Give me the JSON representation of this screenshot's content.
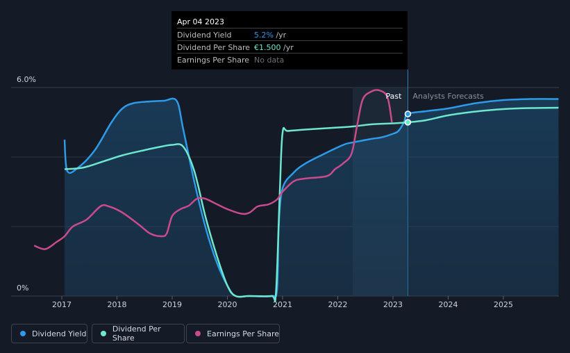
{
  "tooltip": {
    "date": "Apr 04 2023",
    "rows": [
      {
        "label": "Dividend Yield",
        "value": "5.2%",
        "suffix": " /yr",
        "color": "#2e9be8"
      },
      {
        "label": "Dividend Per Share",
        "value": "€1.500",
        "suffix": " /yr",
        "color": "#6ee7cf"
      },
      {
        "label": "Earnings Per Share",
        "value": "No data",
        "suffix": "",
        "color": "#6a6f78"
      }
    ]
  },
  "legend": [
    {
      "label": "Dividend Yield",
      "color": "#2e9be8"
    },
    {
      "label": "Dividend Per Share",
      "color": "#6ee7cf"
    },
    {
      "label": "Earnings Per Share",
      "color": "#c94b8d"
    }
  ],
  "chart_data": {
    "type": "line",
    "y_top_label": "6.0%",
    "y_bottom_label": "0%",
    "ylim": [
      0,
      6.0
    ],
    "xlim": [
      2016.5,
      2026
    ],
    "x_ticks": [
      "2017",
      "2018",
      "2019",
      "2020",
      "2021",
      "2022",
      "2023",
      "2024",
      "2025"
    ],
    "past_label": "Past",
    "forecast_label": "Analysts Forecasts",
    "past_end": 2023.27,
    "forecast_band_start": 2022.27,
    "series": [
      {
        "name": "Dividend Yield",
        "color": "#2e9be8",
        "points": [
          [
            2017.05,
            4.5
          ],
          [
            2017.1,
            3.6
          ],
          [
            2017.3,
            3.7
          ],
          [
            2017.6,
            4.2
          ],
          [
            2017.9,
            5.0
          ],
          [
            2018.1,
            5.4
          ],
          [
            2018.3,
            5.55
          ],
          [
            2018.6,
            5.6
          ],
          [
            2018.85,
            5.62
          ],
          [
            2019.08,
            5.62
          ],
          [
            2019.2,
            4.8
          ],
          [
            2019.4,
            3.3
          ],
          [
            2019.6,
            2.0
          ],
          [
            2019.8,
            1.0
          ],
          [
            2020.0,
            0.3
          ],
          [
            2020.15,
            0
          ],
          [
            2020.4,
            0
          ],
          [
            2020.8,
            0
          ],
          [
            2020.9,
            0.2
          ],
          [
            2020.93,
            2.0
          ],
          [
            2021.0,
            3.1
          ],
          [
            2021.2,
            3.55
          ],
          [
            2021.4,
            3.8
          ],
          [
            2021.7,
            4.05
          ],
          [
            2022.1,
            4.35
          ],
          [
            2022.27,
            4.42
          ],
          [
            2022.6,
            4.52
          ],
          [
            2022.8,
            4.57
          ],
          [
            2023.0,
            4.67
          ],
          [
            2023.1,
            4.75
          ],
          [
            2023.2,
            5.0
          ],
          [
            2023.27,
            5.24
          ],
          [
            2023.6,
            5.32
          ],
          [
            2024.0,
            5.4
          ],
          [
            2024.5,
            5.55
          ],
          [
            2025.0,
            5.64
          ],
          [
            2025.5,
            5.67
          ],
          [
            2026.0,
            5.67
          ]
        ],
        "marker": [
          2023.27,
          5.24
        ]
      },
      {
        "name": "Dividend Per Share",
        "color": "#6ee7cf",
        "points": [
          [
            2017.05,
            3.65
          ],
          [
            2017.4,
            3.7
          ],
          [
            2017.8,
            3.9
          ],
          [
            2018.1,
            4.05
          ],
          [
            2018.5,
            4.2
          ],
          [
            2018.8,
            4.3
          ],
          [
            2019.0,
            4.35
          ],
          [
            2019.2,
            4.3
          ],
          [
            2019.4,
            3.6
          ],
          [
            2019.6,
            2.3
          ],
          [
            2019.8,
            1.2
          ],
          [
            2020.0,
            0.3
          ],
          [
            2020.15,
            0
          ],
          [
            2020.4,
            0
          ],
          [
            2020.8,
            0
          ],
          [
            2020.88,
            0.1
          ],
          [
            2020.95,
            3.0
          ],
          [
            2021.0,
            4.7
          ],
          [
            2021.1,
            4.75
          ],
          [
            2021.5,
            4.8
          ],
          [
            2022.0,
            4.85
          ],
          [
            2022.27,
            4.88
          ],
          [
            2022.6,
            4.94
          ],
          [
            2023.0,
            4.97
          ],
          [
            2023.27,
            5.0
          ],
          [
            2023.6,
            5.06
          ],
          [
            2024.0,
            5.2
          ],
          [
            2024.5,
            5.31
          ],
          [
            2025.0,
            5.38
          ],
          [
            2025.5,
            5.41
          ],
          [
            2026.0,
            5.42
          ]
        ],
        "marker": [
          2023.27,
          5.0
        ]
      },
      {
        "name": "Earnings Per Share",
        "color": "#c94b8d",
        "points": [
          [
            2016.5,
            1.45
          ],
          [
            2016.7,
            1.35
          ],
          [
            2016.9,
            1.55
          ],
          [
            2017.05,
            1.72
          ],
          [
            2017.2,
            2.0
          ],
          [
            2017.45,
            2.2
          ],
          [
            2017.7,
            2.58
          ],
          [
            2017.85,
            2.58
          ],
          [
            2018.1,
            2.4
          ],
          [
            2018.4,
            2.05
          ],
          [
            2018.6,
            1.8
          ],
          [
            2018.8,
            1.72
          ],
          [
            2018.9,
            1.8
          ],
          [
            2019.0,
            2.3
          ],
          [
            2019.15,
            2.5
          ],
          [
            2019.3,
            2.6
          ],
          [
            2019.45,
            2.8
          ],
          [
            2019.6,
            2.8
          ],
          [
            2019.8,
            2.65
          ],
          [
            2020.0,
            2.5
          ],
          [
            2020.25,
            2.37
          ],
          [
            2020.4,
            2.4
          ],
          [
            2020.55,
            2.58
          ],
          [
            2020.75,
            2.64
          ],
          [
            2020.9,
            2.78
          ],
          [
            2021.0,
            3.0
          ],
          [
            2021.2,
            3.3
          ],
          [
            2021.4,
            3.38
          ],
          [
            2021.8,
            3.45
          ],
          [
            2021.95,
            3.65
          ],
          [
            2022.1,
            3.82
          ],
          [
            2022.25,
            4.1
          ],
          [
            2022.35,
            4.9
          ],
          [
            2022.45,
            5.65
          ],
          [
            2022.6,
            5.88
          ],
          [
            2022.75,
            5.92
          ],
          [
            2022.9,
            5.72
          ],
          [
            2022.98,
            5.0
          ]
        ]
      }
    ]
  }
}
